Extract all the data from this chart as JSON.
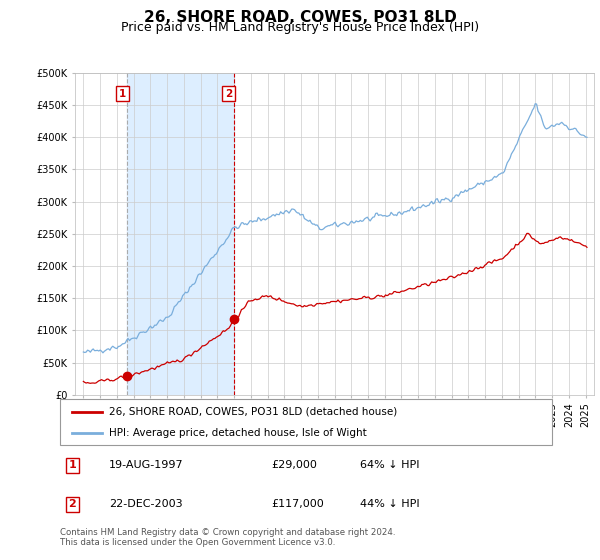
{
  "title": "26, SHORE ROAD, COWES, PO31 8LD",
  "subtitle": "Price paid vs. HM Land Registry's House Price Index (HPI)",
  "ylim": [
    0,
    500000
  ],
  "yticks": [
    0,
    50000,
    100000,
    150000,
    200000,
    250000,
    300000,
    350000,
    400000,
    450000,
    500000
  ],
  "ytick_labels": [
    "£0",
    "£50K",
    "£100K",
    "£150K",
    "£200K",
    "£250K",
    "£300K",
    "£350K",
    "£400K",
    "£450K",
    "£500K"
  ],
  "sale1_date": 1997.63,
  "sale1_price": 29000,
  "sale2_date": 2003.975,
  "sale2_price": 117000,
  "property_color": "#cc0000",
  "hpi_color": "#7aaedc",
  "shade_color": "#ddeeff",
  "grid_color": "#cccccc",
  "legend_label1": "26, SHORE ROAD, COWES, PO31 8LD (detached house)",
  "legend_label2": "HPI: Average price, detached house, Isle of Wight",
  "table_row1": [
    "1",
    "19-AUG-1997",
    "£29,000",
    "64% ↓ HPI"
  ],
  "table_row2": [
    "2",
    "22-DEC-2003",
    "£117,000",
    "44% ↓ HPI"
  ],
  "footnote": "Contains HM Land Registry data © Crown copyright and database right 2024.\nThis data is licensed under the Open Government Licence v3.0.",
  "title_fontsize": 11,
  "subtitle_fontsize": 9,
  "tick_fontsize": 7,
  "xlim": [
    1994.5,
    2025.5
  ]
}
